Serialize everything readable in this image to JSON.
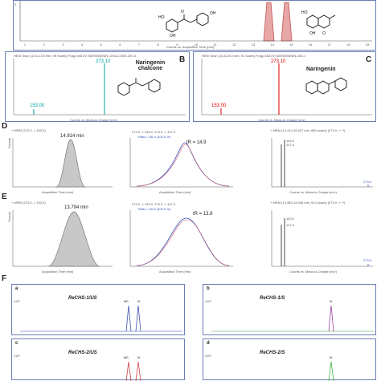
{
  "panel_letters": {
    "B": "B",
    "C": "C",
    "D": "D",
    "E": "E",
    "F": "F"
  },
  "top_strip": {
    "xaxis_label": "Counts vs. Acquisition Time (min)",
    "tick_labels": [
      "1",
      "2",
      "3",
      "4",
      "5",
      "6",
      "7",
      "8",
      "9",
      "10",
      "11",
      "12",
      "13",
      "14",
      "15",
      "16",
      "17",
      "18",
      "19"
    ],
    "ytick": "0"
  },
  "panel_B": {
    "header": "HESI Scan (13.6-13.9 min, 49 Scans) Frag=165.0V NARINGENIN CHALCONE-200.d",
    "compound": "Naringenin chalcone",
    "peak_major": "273.10",
    "peak_minor": "153.00",
    "xaxis_label": "Counts vs. Mass-to-Charge (m/z)",
    "ytick_top": "x10⁴",
    "colors": {
      "major": "#00a0a0",
      "minor": "#00a0a0"
    }
  },
  "panel_C": {
    "header": "HESI Scan (14.8-15.0 min, 91 Scans) Frag=165.0V NARINGENIN-200.d",
    "compound": "Naringenin",
    "peak_major": "273.10",
    "peak_minor": "153.00",
    "xaxis_label": "Counts vs. Mass-to-Charge (m/z)",
    "colors": {
      "major": "#e00000",
      "minor": "#e00000"
    }
  },
  "panel_D": {
    "mrm_title": "+ MRM (273.0 -> 153.0)",
    "peak_time": "14.914 min",
    "xaxis_label": "Acquisition Time (min)",
    "yaxis_label": "Counts",
    "overlay_title": "273.0 -> 153.0, 273.0 -> 147.0",
    "ratio": "Ratio = 56.4 (100.0 %)",
    "tr_label": "tR = 14.9",
    "ms_title": "+ MRM (14.414-15.627 min, 680 scans) (273.0 -> **)",
    "ms_peak1": "147.0",
    "ms_peak2": "153.0",
    "ms_peak3": "273.0",
    "ms_xaxis": "Counts vs. Mass-to-Charge (m/z)",
    "ms_ticks": [
      "140",
      "150",
      "160",
      "170",
      "180",
      "190",
      "200",
      "210",
      "220",
      "230",
      "240",
      "250",
      "260",
      "270",
      "280"
    ]
  },
  "panel_E": {
    "mrm_title": "+ MRM (273.0 -> 153.0)",
    "peak_time": "13.794 min",
    "xaxis_label": "Acquisition Time (min)",
    "yaxis_label": "Counts",
    "overlay_title": "273.0 -> 153.0, 273.0 -> 147.0",
    "ratio": "Ratio = 60.6 (100.0 %)",
    "tr_label": "tR = 13.8",
    "ms_title": "+ MRM (13.383-14.298 min, 512 scans) (273.0 -> **)",
    "ms_peak1": "147.0",
    "ms_peak2": "153.0",
    "ms_peak3": "273.0",
    "ms_xaxis": "Counts vs. Mass-to-Charge (m/z)",
    "ms_ticks": [
      "140",
      "150",
      "160",
      "170",
      "180",
      "190",
      "200",
      "210",
      "220",
      "230",
      "240",
      "250",
      "260",
      "270",
      "280"
    ]
  },
  "panel_F": {
    "subpanels": [
      {
        "letter": "a",
        "sample": "ReCHS-1/US",
        "peaks": [
          "NC",
          "N"
        ]
      },
      {
        "letter": "b",
        "sample": "ReCHS-1/S",
        "peaks": [
          "N"
        ]
      },
      {
        "letter": "c",
        "sample": "ReCHS-2/US",
        "peaks": [
          "NC",
          "N"
        ]
      },
      {
        "letter": "d",
        "sample": "ReCHS-2/S",
        "peaks": [
          "N"
        ]
      }
    ],
    "yscale": "x10⁵"
  },
  "chart_data": [
    {
      "type": "line",
      "title": "",
      "xlabel": "Counts vs. Acquisition Time (min)",
      "x_range": [
        0,
        19
      ],
      "series": [
        {
          "x": [
            13.6,
            13.8,
            14.0
          ],
          "y": [
            0,
            1,
            0
          ]
        },
        {
          "x": [
            14.7,
            14.9,
            15.1
          ],
          "y": [
            0,
            1,
            0
          ]
        }
      ]
    },
    {
      "type": "bar",
      "title": "Naringenin chalcone",
      "xlabel": "Counts vs. Mass-to-Charge (m/z)",
      "categories": [
        "153.00",
        "273.10"
      ],
      "values": [
        0.1,
        1.0
      ]
    },
    {
      "type": "bar",
      "title": "Naringenin",
      "xlabel": "Counts vs. Mass-to-Charge (m/z)",
      "categories": [
        "153.00",
        "273.10"
      ],
      "values": [
        0.12,
        1.0
      ]
    },
    {
      "type": "area",
      "title": "+ MRM (273.0 -> 153.0)",
      "xlabel": "Acquisition Time (min)",
      "ylabel": "Counts",
      "x_range": [
        13.5,
        16.0
      ],
      "peak_x": 14.914
    },
    {
      "type": "area",
      "title": "+ MRM (273.0 -> 153.0)",
      "xlabel": "Acquisition Time (min)",
      "ylabel": "Counts",
      "x_range": [
        13.0,
        14.5
      ],
      "peak_x": 13.794
    },
    {
      "type": "bar",
      "title": "+ MRM (14.414-15.627 min, 680 scans) (273.0 -> **)",
      "xlabel": "Counts vs. Mass-to-Charge (m/z)",
      "categories": [
        "147.0",
        "153.0",
        "273.0"
      ],
      "values": [
        0.85,
        1.0,
        0.05
      ]
    },
    {
      "type": "bar",
      "title": "+ MRM (13.383-14.298 min, 512 scans) (273.0 -> **)",
      "xlabel": "Counts vs. Mass-to-Charge (m/z)",
      "categories": [
        "147.0",
        "153.0",
        "273.0"
      ],
      "values": [
        0.8,
        1.0,
        0.05
      ]
    }
  ]
}
